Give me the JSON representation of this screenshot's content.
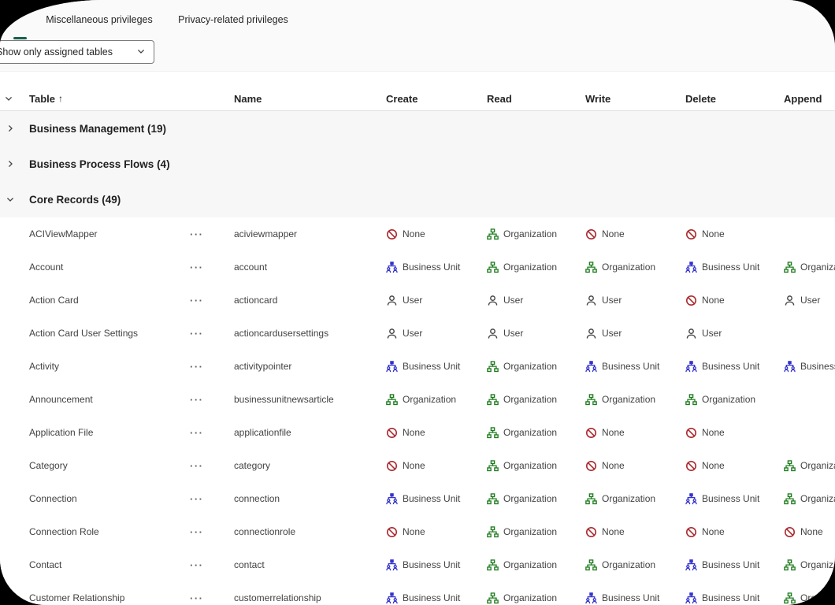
{
  "colors": {
    "accent_tab_indicator": "#17604d",
    "topbar_bg": "#fafafa",
    "group_row_bg": "#f7f7f7",
    "none_red": "#ab2b30",
    "organization_green": "#1e7b1e",
    "business_unit_blue": "#3333cc",
    "user_gray": "#424242",
    "text_primary": "#242424",
    "text_secondary": "#424242"
  },
  "tabs": [
    {
      "label": "",
      "selected": true
    },
    {
      "label": "Miscellaneous privileges",
      "selected": false
    },
    {
      "label": "Privacy-related privileges",
      "selected": false
    }
  ],
  "filter": {
    "value": "Show only assigned tables",
    "chevron_icon": "chevron-down-icon"
  },
  "table": {
    "columns": [
      {
        "key": "table",
        "label": "Table",
        "sorted": "asc",
        "sort_glyph": "↑"
      },
      {
        "key": "name",
        "label": "Name"
      },
      {
        "key": "create",
        "label": "Create"
      },
      {
        "key": "read",
        "label": "Read"
      },
      {
        "key": "write",
        "label": "Write"
      },
      {
        "key": "delete",
        "label": "Delete"
      },
      {
        "key": "append",
        "label": "Append"
      }
    ],
    "groups": [
      {
        "label": "Business Management (19)",
        "expanded": false
      },
      {
        "label": "Business Process Flows (4)",
        "expanded": false
      },
      {
        "label": "Core Records (49)",
        "expanded": true
      }
    ],
    "privilege_levels": {
      "none": {
        "label": "None",
        "icon": "ban-icon"
      },
      "user": {
        "label": "User",
        "icon": "user-icon"
      },
      "bu": {
        "label": "Business Unit",
        "icon": "business-unit-icon"
      },
      "org": {
        "label": "Organization",
        "icon": "organization-icon"
      }
    },
    "more_button_glyph": "···",
    "rows": [
      {
        "table": "ACIViewMapper",
        "name": "aciviewmapper",
        "create": "none",
        "read": "org",
        "write": "none",
        "delete": "none",
        "append": ""
      },
      {
        "table": "Account",
        "name": "account",
        "create": "bu",
        "read": "org",
        "write": "org",
        "delete": "bu",
        "append": "org"
      },
      {
        "table": "Action Card",
        "name": "actioncard",
        "create": "user",
        "read": "user",
        "write": "user",
        "delete": "none",
        "append": "user"
      },
      {
        "table": "Action Card User Settings",
        "name": "actioncardusersettings",
        "create": "user",
        "read": "user",
        "write": "user",
        "delete": "user",
        "append": ""
      },
      {
        "table": "Activity",
        "name": "activitypointer",
        "create": "bu",
        "read": "org",
        "write": "bu",
        "delete": "bu",
        "append": "bu"
      },
      {
        "table": "Announcement",
        "name": "businessunitnewsarticle",
        "create": "org",
        "read": "org",
        "write": "org",
        "delete": "org",
        "append": ""
      },
      {
        "table": "Application File",
        "name": "applicationfile",
        "create": "none",
        "read": "org",
        "write": "none",
        "delete": "none",
        "append": ""
      },
      {
        "table": "Category",
        "name": "category",
        "create": "none",
        "read": "org",
        "write": "none",
        "delete": "none",
        "append": "org"
      },
      {
        "table": "Connection",
        "name": "connection",
        "create": "bu",
        "read": "org",
        "write": "org",
        "delete": "bu",
        "append": "org"
      },
      {
        "table": "Connection Role",
        "name": "connectionrole",
        "create": "none",
        "read": "org",
        "write": "none",
        "delete": "none",
        "append": "none"
      },
      {
        "table": "Contact",
        "name": "contact",
        "create": "bu",
        "read": "org",
        "write": "org",
        "delete": "bu",
        "append": "org"
      },
      {
        "table": "Customer Relationship",
        "name": "customerrelationship",
        "create": "bu",
        "read": "org",
        "write": "bu",
        "delete": "bu",
        "append": "org"
      }
    ]
  }
}
